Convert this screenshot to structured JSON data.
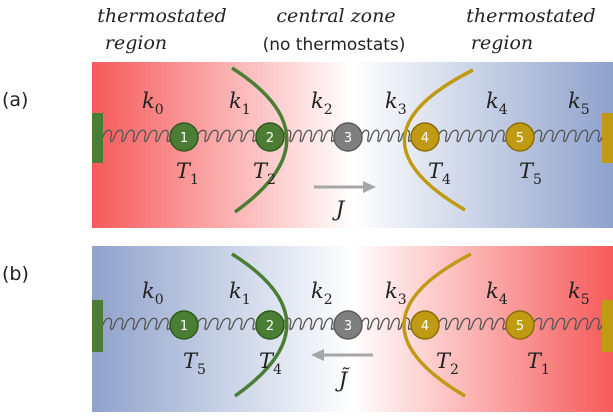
{
  "header": {
    "left_l1": "thermostated",
    "left_l2": "region",
    "mid_l1": "central zone",
    "mid_l2": "(no thermostats)",
    "right_l1": "thermostated",
    "right_l2": "region"
  },
  "panels": [
    {
      "label": "(a)",
      "gradient": [
        "#f65a5a",
        "#ffffff",
        "#8fa2cc"
      ],
      "springs": [
        "k",
        "k",
        "k",
        "k",
        "k",
        "k"
      ],
      "spring_subs": [
        "0",
        "1",
        "2",
        "3",
        "4",
        "5"
      ],
      "particles": [
        "1",
        "2",
        "3",
        "4",
        "5"
      ],
      "temps": [
        {
          "base": "T",
          "sub": "1"
        },
        {
          "base": "T",
          "sub": "2"
        },
        {
          "base": "T",
          "sub": "4"
        },
        {
          "base": "T",
          "sub": "5"
        }
      ],
      "current": "J",
      "current_direction": "right"
    },
    {
      "label": "(b)",
      "gradient": [
        "#8fa2cc",
        "#ffffff",
        "#f65a5a"
      ],
      "springs": [
        "k",
        "k",
        "k",
        "k",
        "k",
        "k"
      ],
      "spring_subs": [
        "0",
        "1",
        "2",
        "3",
        "4",
        "5"
      ],
      "particles": [
        "1",
        "2",
        "3",
        "4",
        "5"
      ],
      "temps": [
        {
          "base": "T",
          "sub": "5"
        },
        {
          "base": "T",
          "sub": "4"
        },
        {
          "base": "T",
          "sub": "2"
        },
        {
          "base": "T",
          "sub": "1"
        }
      ],
      "current": "J̃",
      "current_direction": "left"
    }
  ],
  "colors": {
    "green": "#4b7d34",
    "green_dark": "#2f5a1e",
    "gray": "#7f7f7f",
    "gold": "#c09a12",
    "gold_dark": "#8a6d07",
    "spring": "#555555",
    "arrow": "#a6a6a6"
  }
}
